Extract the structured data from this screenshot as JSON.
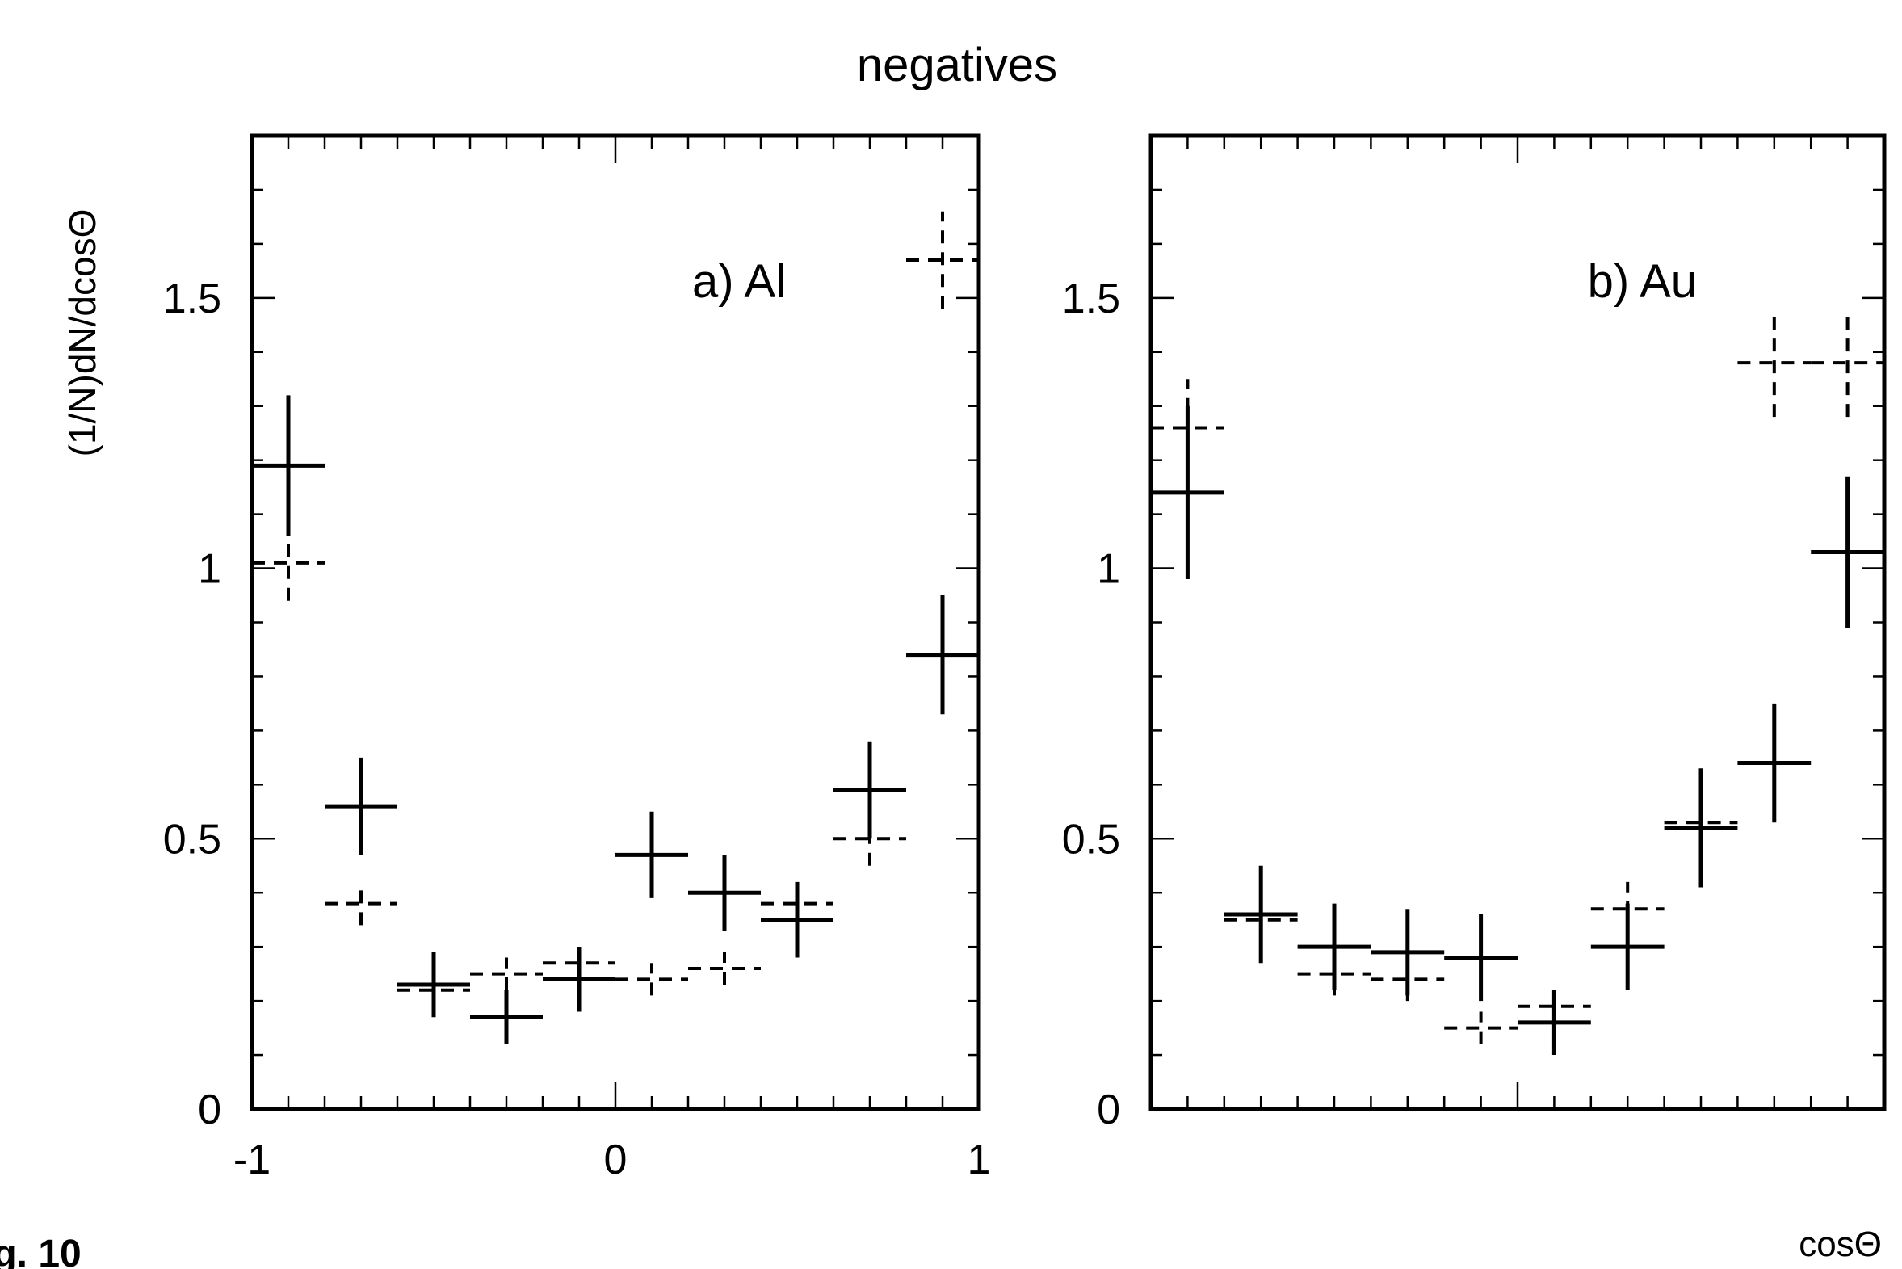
{
  "figure": {
    "title": "negatives",
    "ylabel": "(1/N)dN/dcosΘ",
    "xlabel": "cosΘ",
    "caption_fragment": "ig. 10"
  },
  "chart_data": [
    {
      "type": "scatter",
      "panel_label": "a) Al",
      "xlim": [
        -1,
        1
      ],
      "ylim": [
        0,
        1.8
      ],
      "x_ticks": [
        {
          "value": -1,
          "label": "-1"
        },
        {
          "value": 0,
          "label": "0"
        },
        {
          "value": 1,
          "label": "1"
        }
      ],
      "y_ticks": [
        {
          "value": 0,
          "label": "0"
        },
        {
          "value": 0.5,
          "label": "0.5"
        },
        {
          "value": 1,
          "label": "1"
        },
        {
          "value": 1.5,
          "label": "1.5"
        }
      ],
      "bin_half_width": 0.1,
      "series": [
        {
          "style": "solid",
          "x": [
            -0.9,
            -0.7,
            -0.5,
            -0.3,
            -0.1,
            0.1,
            0.3,
            0.5,
            0.7,
            0.9
          ],
          "y": [
            1.19,
            0.56,
            0.23,
            0.17,
            0.24,
            0.47,
            0.4,
            0.35,
            0.59,
            0.84
          ],
          "err": [
            0.13,
            0.09,
            0.06,
            0.05,
            0.06,
            0.08,
            0.07,
            0.07,
            0.09,
            0.11
          ]
        },
        {
          "style": "dashed",
          "x": [
            -0.9,
            -0.7,
            -0.5,
            -0.3,
            -0.1,
            0.1,
            0.3,
            0.5,
            0.7,
            0.9
          ],
          "y": [
            1.01,
            0.38,
            0.22,
            0.25,
            0.27,
            0.24,
            0.26,
            0.38,
            0.5,
            1.57
          ],
          "err": [
            0.07,
            0.04,
            0.03,
            0.03,
            0.03,
            0.03,
            0.03,
            0.04,
            0.05,
            0.09
          ]
        }
      ]
    },
    {
      "type": "scatter",
      "panel_label": "b) Au",
      "xlim": [
        -1,
        1
      ],
      "ylim": [
        0,
        1.8
      ],
      "x_ticks": [],
      "y_ticks": [
        {
          "value": 0,
          "label": "0"
        },
        {
          "value": 0.5,
          "label": "0.5"
        },
        {
          "value": 1,
          "label": "1"
        },
        {
          "value": 1.5,
          "label": "1.5"
        }
      ],
      "bin_half_width": 0.1,
      "series": [
        {
          "style": "solid",
          "x": [
            -0.9,
            -0.7,
            -0.5,
            -0.3,
            -0.1,
            0.1,
            0.3,
            0.5,
            0.7,
            0.9
          ],
          "y": [
            1.14,
            0.36,
            0.3,
            0.29,
            0.28,
            0.16,
            0.3,
            0.52,
            0.64,
            1.03
          ],
          "err": [
            0.16,
            0.09,
            0.08,
            0.08,
            0.08,
            0.06,
            0.08,
            0.11,
            0.11,
            0.14
          ]
        },
        {
          "style": "dashed",
          "x": [
            -0.9,
            -0.7,
            -0.5,
            -0.3,
            -0.1,
            0.1,
            0.3,
            0.5,
            0.7,
            0.9
          ],
          "y": [
            1.26,
            0.35,
            0.25,
            0.24,
            0.15,
            0.19,
            0.37,
            0.53,
            1.38,
            1.38
          ],
          "err": [
            0.09,
            0.04,
            0.04,
            0.04,
            0.03,
            0.04,
            0.05,
            0.06,
            0.1,
            0.1
          ]
        }
      ]
    }
  ]
}
